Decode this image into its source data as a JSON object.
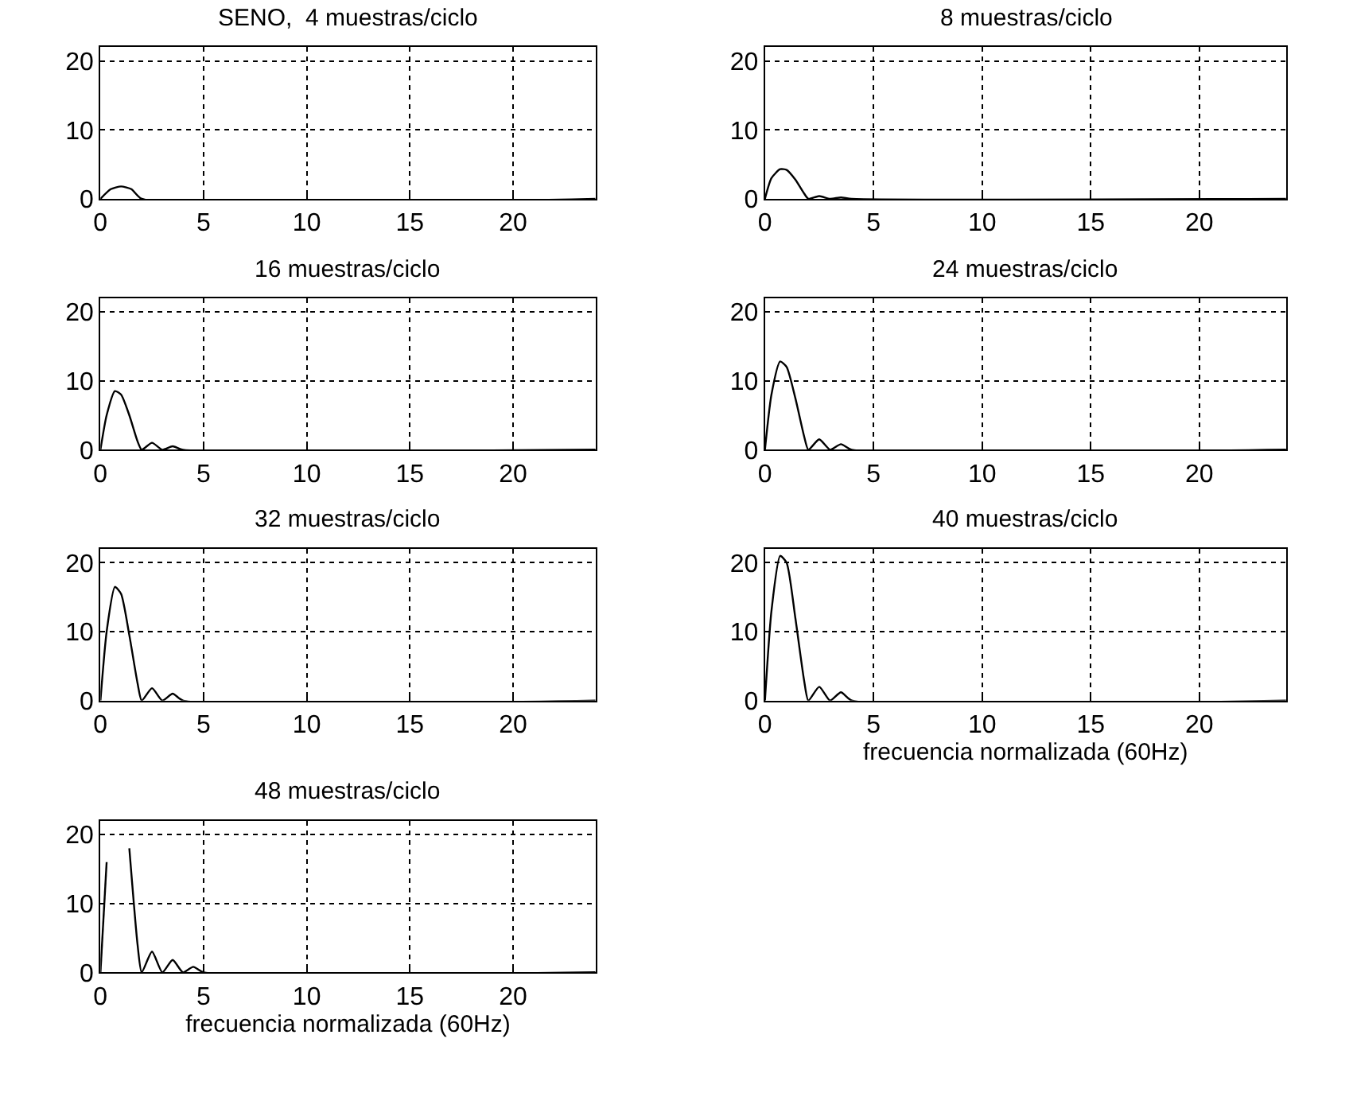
{
  "chart_data": [
    {
      "type": "line",
      "title": "SENO,  4 muestras/ciclo",
      "x": [
        0,
        0.5,
        1,
        1.5,
        2,
        24
      ],
      "values": [
        0,
        1.4,
        1.8,
        1.4,
        0,
        0
      ],
      "color": "#000000",
      "xlim": [
        0,
        24
      ],
      "ylim": [
        0,
        22
      ],
      "xticks": [
        0,
        5,
        10,
        15,
        20
      ],
      "yticks": [
        0,
        10,
        20
      ],
      "grid": true
    },
    {
      "type": "line",
      "title": "8 muestras/ciclo",
      "x": [
        0,
        0.3,
        0.7,
        1,
        1.4,
        1.8,
        2,
        2.5,
        3,
        3.5,
        4,
        24
      ],
      "values": [
        0,
        3,
        4.3,
        4.2,
        2.8,
        0.8,
        0,
        0.4,
        0,
        0.2,
        0,
        0
      ],
      "color": "#000000",
      "xlim": [
        0,
        24
      ],
      "ylim": [
        0,
        22
      ],
      "xticks": [
        0,
        5,
        10,
        15,
        20
      ],
      "yticks": [
        0,
        10,
        20
      ],
      "grid": true
    },
    {
      "type": "line",
      "title": "16 muestras/ciclo",
      "x": [
        0,
        0.3,
        0.7,
        1,
        1.4,
        1.8,
        2,
        2.5,
        3,
        3.5,
        4,
        24
      ],
      "values": [
        0,
        5,
        8.5,
        8,
        5,
        1.2,
        0,
        1,
        0,
        0.5,
        0,
        0
      ],
      "color": "#000000",
      "xlim": [
        0,
        24
      ],
      "ylim": [
        0,
        22
      ],
      "xticks": [
        0,
        5,
        10,
        15,
        20
      ],
      "yticks": [
        0,
        10,
        20
      ],
      "grid": true
    },
    {
      "type": "line",
      "title": "24 muestras/ciclo",
      "x": [
        0,
        0.3,
        0.7,
        1,
        1.4,
        1.8,
        2,
        2.5,
        3,
        3.5,
        4,
        24
      ],
      "values": [
        0,
        8,
        12.8,
        12,
        7.5,
        2,
        0,
        1.5,
        0,
        0.8,
        0,
        0
      ],
      "color": "#000000",
      "xlim": [
        0,
        24
      ],
      "ylim": [
        0,
        22
      ],
      "xticks": [
        0,
        5,
        10,
        15,
        20
      ],
      "yticks": [
        0,
        10,
        20
      ],
      "grid": true
    },
    {
      "type": "line",
      "title": "32 muestras/ciclo",
      "x": [
        0,
        0.3,
        0.7,
        1,
        1.4,
        1.8,
        2,
        2.5,
        3,
        3.5,
        4,
        24
      ],
      "values": [
        0,
        10,
        16.5,
        15.5,
        9.5,
        2.5,
        0,
        1.8,
        0,
        1,
        0,
        0
      ],
      "color": "#000000",
      "xlim": [
        0,
        24
      ],
      "ylim": [
        0,
        22
      ],
      "xticks": [
        0,
        5,
        10,
        15,
        20
      ],
      "yticks": [
        0,
        10,
        20
      ],
      "grid": true
    },
    {
      "type": "line",
      "title": "40 muestras/ciclo",
      "xlabel": "frecuencia normalizada (60Hz)",
      "x": [
        0,
        0.3,
        0.7,
        1,
        1.4,
        1.8,
        2,
        2.5,
        3,
        3.5,
        4,
        24
      ],
      "values": [
        0,
        13,
        21,
        20,
        12,
        3,
        0,
        2,
        0,
        1.2,
        0,
        0
      ],
      "color": "#000000",
      "xlim": [
        0,
        24
      ],
      "ylim": [
        0,
        22
      ],
      "xticks": [
        0,
        5,
        10,
        15,
        20
      ],
      "yticks": [
        0,
        10,
        20
      ],
      "grid": true
    },
    {
      "type": "line",
      "title": "48 muestras/ciclo",
      "xlabel": "frecuencia normalizada (60Hz)",
      "x": [
        0,
        0.3,
        0.4,
        0.8,
        1.3,
        1.4,
        1.8,
        2,
        2.5,
        3,
        3.5,
        4,
        4.5,
        5,
        24
      ],
      "values": [
        0,
        16,
        null,
        null,
        null,
        18,
        4,
        0,
        3,
        0,
        1.8,
        0,
        0.8,
        0,
        0
      ],
      "color": "#000000",
      "xlim": [
        0,
        24
      ],
      "ylim": [
        0,
        22
      ],
      "xticks": [
        0,
        5,
        10,
        15,
        20
      ],
      "yticks": [
        0,
        10,
        20
      ],
      "grid": true
    }
  ]
}
